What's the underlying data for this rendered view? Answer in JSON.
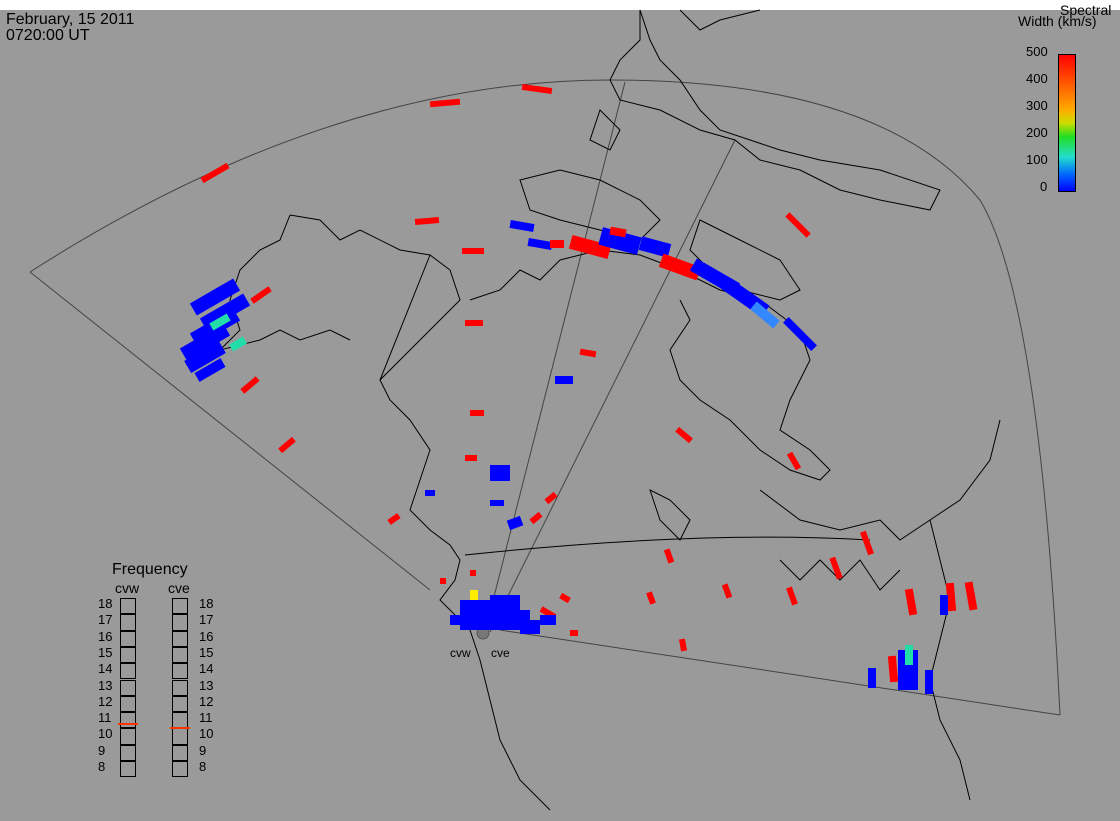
{
  "header": {
    "date": "February, 15 2011",
    "time": "0720:00 UT"
  },
  "colorbar": {
    "title_line1": "Spectral",
    "title_line2": "Width (km/s)",
    "ticks": [
      "500",
      "400",
      "300",
      "200",
      "100",
      "0"
    ],
    "colors": [
      "#ff0000",
      "#ff6600",
      "#ffcc00",
      "#22dd22",
      "#22ddcc",
      "#0000ff"
    ]
  },
  "radars": {
    "west_label": "cvw",
    "east_label": "cve"
  },
  "frequency": {
    "title": "Frequency",
    "col1": "cvw",
    "col2": "cve",
    "scale": [
      "18",
      "17",
      "16",
      "15",
      "14",
      "13",
      "12",
      "11",
      "10",
      "9",
      "8"
    ],
    "cvw_value_mhz": 10.8,
    "cve_value_mhz": 10.6,
    "marker_color": "#ff3300"
  },
  "map_colors": {
    "background": "#9a9a9a",
    "coast": "#000000",
    "fov": "#444444"
  }
}
